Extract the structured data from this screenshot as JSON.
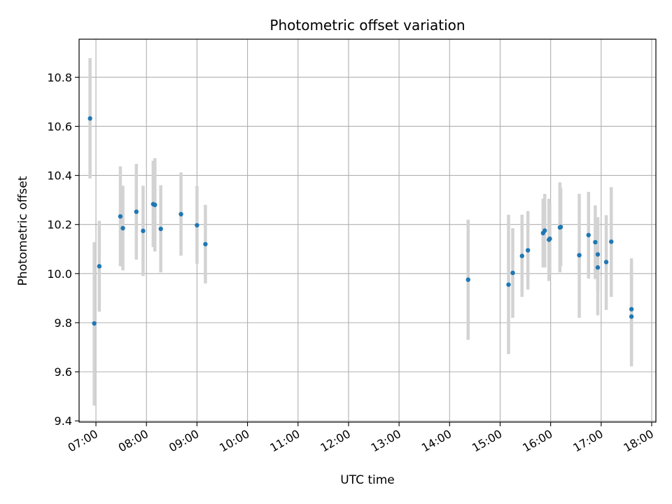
{
  "chart_data": {
    "type": "scatter",
    "title": "Photometric offset variation",
    "xlabel": "UTC time",
    "ylabel": "Photometric offset",
    "grid": true,
    "legend": "none",
    "xlim": [
      "06:40",
      "18:05"
    ],
    "ylim": [
      9.395,
      10.955
    ],
    "x_ticks": [
      "07:00",
      "08:00",
      "09:00",
      "10:00",
      "11:00",
      "12:00",
      "13:00",
      "14:00",
      "15:00",
      "16:00",
      "17:00",
      "18:00"
    ],
    "y_ticks": [
      "9.4",
      "9.6",
      "9.8",
      "10.0",
      "10.2",
      "10.4",
      "10.6",
      "10.8"
    ],
    "marker_color": "#1f77b4",
    "errorbar_color": "#d3d3d3",
    "points": [
      {
        "time": "06:53",
        "y": 10.632,
        "ylow": 10.388,
        "yhigh": 10.878
      },
      {
        "time": "06:58",
        "y": 9.797,
        "ylow": 9.462,
        "yhigh": 10.128
      },
      {
        "time": "07:04",
        "y": 10.03,
        "ylow": 9.845,
        "yhigh": 10.215
      },
      {
        "time": "07:29",
        "y": 10.233,
        "ylow": 10.03,
        "yhigh": 10.437
      },
      {
        "time": "07:32",
        "y": 10.185,
        "ylow": 10.013,
        "yhigh": 10.358
      },
      {
        "time": "07:48",
        "y": 10.252,
        "ylow": 10.057,
        "yhigh": 10.447
      },
      {
        "time": "07:56",
        "y": 10.174,
        "ylow": 9.99,
        "yhigh": 10.358
      },
      {
        "time": "08:08",
        "y": 10.283,
        "ylow": 10.108,
        "yhigh": 10.46
      },
      {
        "time": "08:10",
        "y": 10.28,
        "ylow": 10.09,
        "yhigh": 10.47
      },
      {
        "time": "08:17",
        "y": 10.182,
        "ylow": 10.005,
        "yhigh": 10.36
      },
      {
        "time": "08:41",
        "y": 10.242,
        "ylow": 10.073,
        "yhigh": 10.412
      },
      {
        "time": "09:00",
        "y": 10.197,
        "ylow": 10.04,
        "yhigh": 10.357
      },
      {
        "time": "09:10",
        "y": 10.12,
        "ylow": 9.96,
        "yhigh": 10.28
      },
      {
        "time": "14:22",
        "y": 9.975,
        "ylow": 9.73,
        "yhigh": 10.22
      },
      {
        "time": "15:10",
        "y": 9.955,
        "ylow": 9.672,
        "yhigh": 10.24
      },
      {
        "time": "15:15",
        "y": 10.003,
        "ylow": 9.82,
        "yhigh": 10.185
      },
      {
        "time": "15:26",
        "y": 10.072,
        "ylow": 9.905,
        "yhigh": 10.24
      },
      {
        "time": "15:33",
        "y": 10.095,
        "ylow": 9.935,
        "yhigh": 10.255
      },
      {
        "time": "15:51",
        "y": 10.165,
        "ylow": 10.025,
        "yhigh": 10.305
      },
      {
        "time": "15:53",
        "y": 10.175,
        "ylow": 10.025,
        "yhigh": 10.325
      },
      {
        "time": "15:58",
        "y": 10.138,
        "ylow": 9.97,
        "yhigh": 10.305
      },
      {
        "time": "15:59",
        "y": 10.142,
        "ylow": 10.0,
        "yhigh": 10.28
      },
      {
        "time": "16:11",
        "y": 10.188,
        "ylow": 10.005,
        "yhigh": 10.372
      },
      {
        "time": "16:12",
        "y": 10.19,
        "ylow": 10.03,
        "yhigh": 10.35
      },
      {
        "time": "16:34",
        "y": 10.075,
        "ylow": 9.82,
        "yhigh": 10.325
      },
      {
        "time": "16:45",
        "y": 10.157,
        "ylow": 9.98,
        "yhigh": 10.333
      },
      {
        "time": "16:53",
        "y": 10.128,
        "ylow": 9.978,
        "yhigh": 10.278
      },
      {
        "time": "16:56",
        "y": 10.025,
        "ylow": 9.83,
        "yhigh": 10.22
      },
      {
        "time": "16:56",
        "y": 10.078,
        "ylow": 9.925,
        "yhigh": 10.23
      },
      {
        "time": "17:06",
        "y": 10.047,
        "ylow": 9.852,
        "yhigh": 10.238
      },
      {
        "time": "17:12",
        "y": 10.13,
        "ylow": 9.905,
        "yhigh": 10.352
      },
      {
        "time": "17:36",
        "y": 9.855,
        "ylow": 9.65,
        "yhigh": 10.062
      },
      {
        "time": "17:36",
        "y": 9.825,
        "ylow": 9.622,
        "yhigh": 10.03
      }
    ]
  }
}
